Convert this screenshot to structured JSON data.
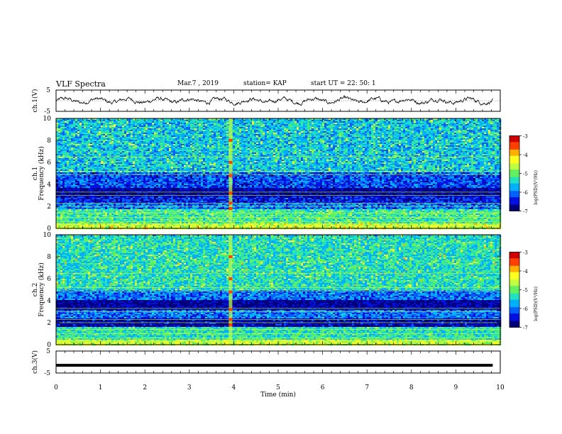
{
  "header": {
    "title": "VLF Spectra",
    "date": "Mar.7 , 2019",
    "station": "station= KAP",
    "start_ut": "start UT = 22: 50: 1"
  },
  "colors": {
    "colormap": [
      "#00007a",
      "#0010e0",
      "#0060ff",
      "#00b0ff",
      "#20e0c0",
      "#60f060",
      "#c0ff40",
      "#ffff20",
      "#ffb000",
      "#ff4000",
      "#d00000",
      "#ffffff"
    ],
    "trace": "#000000"
  },
  "chart_data": [
    {
      "type": "line",
      "panel": "ch1-waveform",
      "ylabel": "ch.1(V)",
      "yticks": [
        "5",
        "-5"
      ],
      "ylim": [
        -5,
        5
      ],
      "xlim": [
        0,
        10
      ],
      "x_extent_min": 9.83,
      "description_values": "noisy trace fluctuating roughly between -1.5 V and +1.5 V"
    },
    {
      "type": "heatmap",
      "panel": "ch1-spectrogram",
      "ylabel_top": "ch.1",
      "ylabel": "Frequency (kHz)",
      "yticks": [
        "0",
        "2",
        "4",
        "6",
        "8",
        "10"
      ],
      "ylim": [
        0,
        10
      ],
      "xlim": [
        0,
        10
      ],
      "colorbar_label": "log(PSD)(V²/Hz)",
      "colorbar_ticks": [
        "-3",
        "-4",
        "-5",
        "-6",
        "-7"
      ],
      "colorbar_range": [
        -7,
        -3
      ],
      "bands_khz": [
        {
          "range": [
            0,
            0.5
          ],
          "level": -4.5
        },
        {
          "range": [
            0.5,
            1.8
          ],
          "level": -5.2
        },
        {
          "range": [
            1.8,
            2.3
          ],
          "level": -6.0
        },
        {
          "range": [
            2.3,
            3.0
          ],
          "level": -6.4
        },
        {
          "range": [
            3.0,
            3.7
          ],
          "level": -6.8
        },
        {
          "range": [
            3.7,
            5.2
          ],
          "level": -6.2
        },
        {
          "range": [
            5.2,
            10
          ],
          "level": -5.6
        }
      ],
      "impulse_time_min": 3.92
    },
    {
      "type": "heatmap",
      "panel": "ch2-spectrogram",
      "ylabel_top": "ch.2",
      "ylabel": "Frequency (kHz)",
      "yticks": [
        "0",
        "2",
        "4",
        "6",
        "8",
        "10"
      ],
      "ylim": [
        0,
        10
      ],
      "xlim": [
        0,
        10
      ],
      "colorbar_label": "log(PSD)(V²/Hz)",
      "colorbar_ticks": [
        "-3",
        "-4",
        "-5",
        "-6",
        "-7"
      ],
      "colorbar_range": [
        -7,
        -3
      ],
      "bands_khz": [
        {
          "range": [
            0,
            0.5
          ],
          "level": -4.6
        },
        {
          "range": [
            0.5,
            1.7
          ],
          "level": -5.3
        },
        {
          "range": [
            1.7,
            2.5
          ],
          "level": -6.7
        },
        {
          "range": [
            2.5,
            3.2
          ],
          "level": -6.0
        },
        {
          "range": [
            3.2,
            4.1
          ],
          "level": -6.8
        },
        {
          "range": [
            4.1,
            5.0
          ],
          "level": -6.0
        },
        {
          "range": [
            5.0,
            10
          ],
          "level": -5.4
        }
      ],
      "impulse_time_min": 3.92
    },
    {
      "type": "line",
      "panel": "ch3-waveform",
      "ylabel": "ch.3(V)",
      "yticks": [
        "5",
        "-5"
      ],
      "ylim": [
        -5,
        5
      ],
      "xlim": [
        0,
        10
      ],
      "constant_value_v": -1.5,
      "xlabel": "Time (min)",
      "xticks": [
        "0",
        "1",
        "2",
        "3",
        "4",
        "5",
        "6",
        "7",
        "8",
        "9",
        "10"
      ]
    }
  ]
}
